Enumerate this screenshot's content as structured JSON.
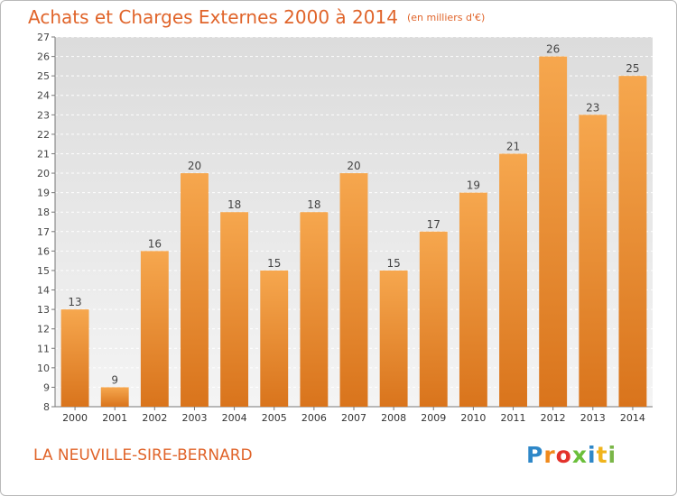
{
  "header": {
    "title": "Achats et Charges Externes 2000 à 2014",
    "unit": "(en milliers d'€)"
  },
  "footer": {
    "commune": "LA NEUVILLE-SIRE-BERNARD",
    "logo": "Proxiti"
  },
  "colors": {
    "bar_top": "#f6a74e",
    "bar_bottom": "#d9741c",
    "title": "#e0642a",
    "plot_bg": "#e8e8e8"
  },
  "chart_data": {
    "type": "bar",
    "title": "Achats et Charges Externes 2000 à 2014",
    "subtitle": "(en milliers d'€)",
    "xlabel": "",
    "ylabel": "",
    "categories": [
      "2000",
      "2001",
      "2002",
      "2003",
      "2004",
      "2005",
      "2006",
      "2007",
      "2008",
      "2009",
      "2010",
      "2011",
      "2012",
      "2013",
      "2014"
    ],
    "values": [
      13,
      9,
      16,
      20,
      18,
      15,
      18,
      20,
      15,
      17,
      19,
      21,
      26,
      23,
      25
    ],
    "ylim": [
      8,
      27
    ],
    "yticks": [
      8,
      9,
      10,
      11,
      12,
      13,
      14,
      15,
      16,
      17,
      18,
      19,
      20,
      21,
      22,
      23,
      24,
      25,
      26,
      27
    ],
    "grid": "horizontal dashed",
    "data_labels": true
  }
}
